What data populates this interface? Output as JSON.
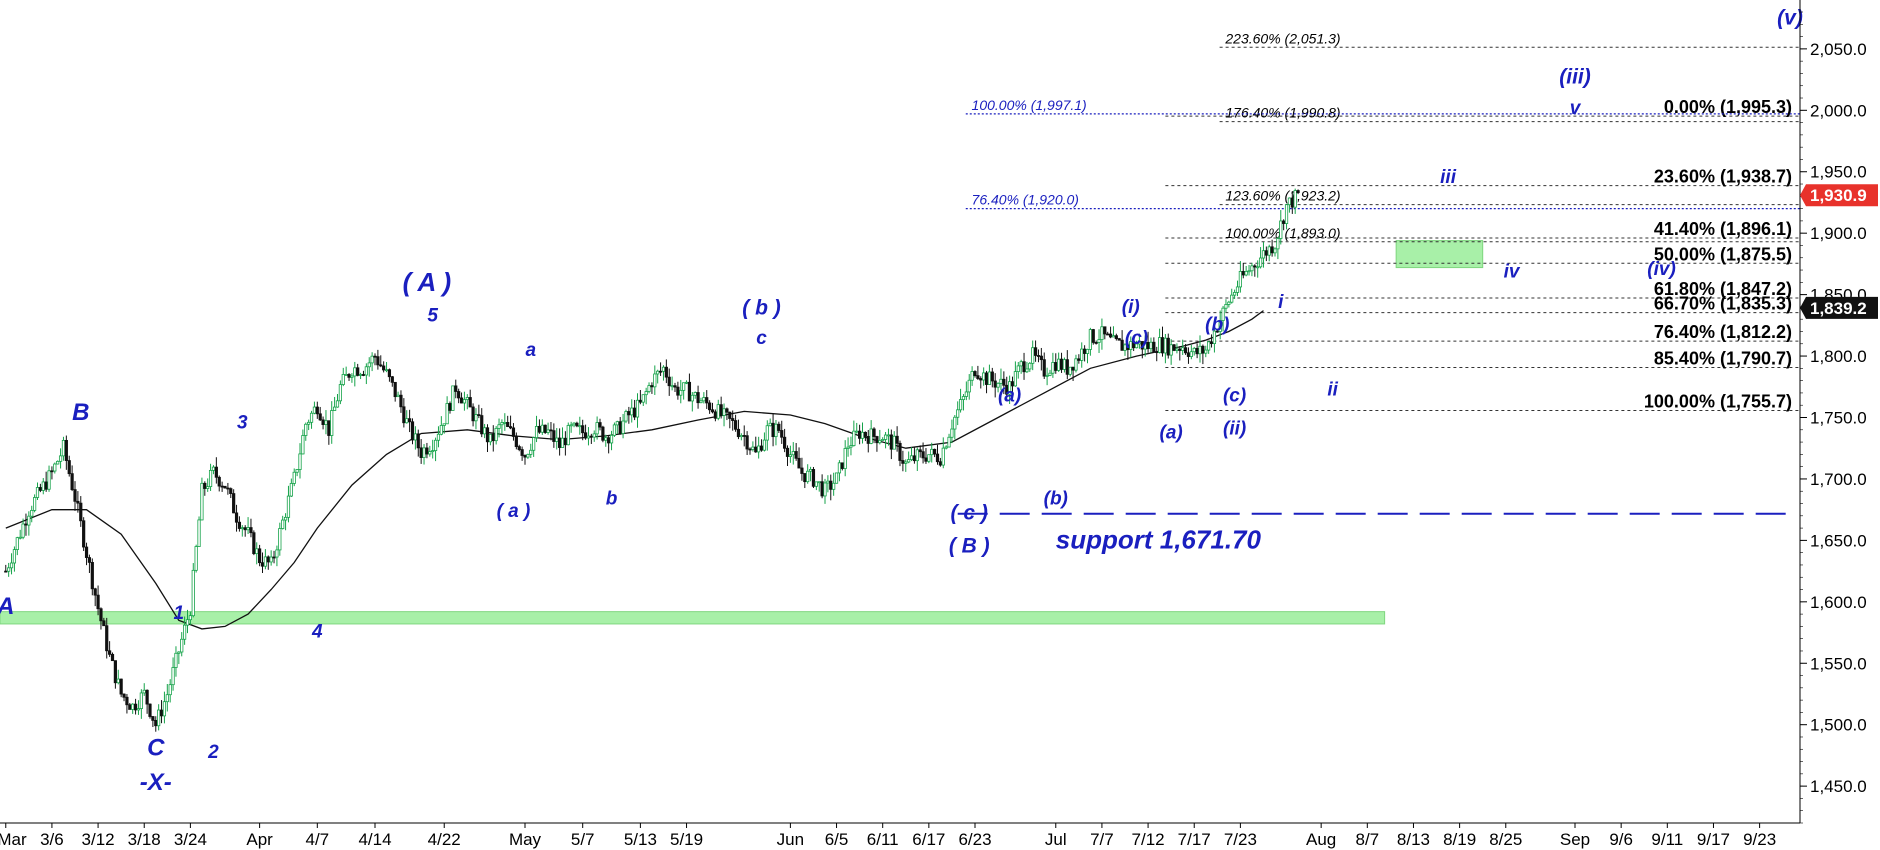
{
  "chart_data": {
    "type": "candlestick",
    "title": "",
    "ylim": [
      1420,
      2080
    ],
    "y_ticks": [
      2050,
      2000,
      1950,
      1900,
      1850,
      1800,
      1750,
      1700,
      1650,
      1600,
      1550,
      1500,
      1450
    ],
    "y_tick_labels": [
      "2,050.0",
      "2,000.0",
      "1,950.0",
      "1,900.0",
      "1,850.0",
      "1,800.0",
      "1,750.0",
      "1,700.0",
      "1,650.0",
      "1,600.0",
      "1,550.0",
      "1,500.0",
      "1,450.0"
    ],
    "x_labels": [
      {
        "idx": 0,
        "label": "Mar"
      },
      {
        "idx": 4,
        "label": "3/6"
      },
      {
        "idx": 8,
        "label": "3/12"
      },
      {
        "idx": 12,
        "label": "3/18"
      },
      {
        "idx": 16,
        "label": "3/24"
      },
      {
        "idx": 22,
        "label": "Apr"
      },
      {
        "idx": 27,
        "label": "4/7"
      },
      {
        "idx": 32,
        "label": "4/14"
      },
      {
        "idx": 38,
        "label": "4/22"
      },
      {
        "idx": 45,
        "label": "May"
      },
      {
        "idx": 50,
        "label": "5/7"
      },
      {
        "idx": 55,
        "label": "5/13"
      },
      {
        "idx": 59,
        "label": "5/19"
      },
      {
        "idx": 68,
        "label": "Jun"
      },
      {
        "idx": 72,
        "label": "6/5"
      },
      {
        "idx": 76,
        "label": "6/11"
      },
      {
        "idx": 80,
        "label": "6/17"
      },
      {
        "idx": 84,
        "label": "6/23"
      },
      {
        "idx": 91,
        "label": "Jul"
      },
      {
        "idx": 95,
        "label": "7/7"
      },
      {
        "idx": 99,
        "label": "7/12"
      },
      {
        "idx": 103,
        "label": "7/17"
      },
      {
        "idx": 107,
        "label": "7/23"
      },
      {
        "idx": 114,
        "label": "Aug"
      },
      {
        "idx": 118,
        "label": "8/7"
      },
      {
        "idx": 122,
        "label": "8/13"
      },
      {
        "idx": 126,
        "label": "8/19"
      },
      {
        "idx": 130,
        "label": "8/25"
      },
      {
        "idx": 136,
        "label": "Sep"
      },
      {
        "idx": 140,
        "label": "9/6"
      },
      {
        "idx": 144,
        "label": "9/11"
      },
      {
        "idx": 148,
        "label": "9/17"
      },
      {
        "idx": 152,
        "label": "9/23"
      }
    ],
    "x_domain": [
      -0.5,
      155.5
    ],
    "price_path": [
      [
        0,
        1625
      ],
      [
        2,
        1675
      ],
      [
        4,
        1705
      ],
      [
        5,
        1725
      ],
      [
        6,
        1685
      ],
      [
        7,
        1640
      ],
      [
        8,
        1595
      ],
      [
        9,
        1555
      ],
      [
        10,
        1525
      ],
      [
        11,
        1515
      ],
      [
        12,
        1525
      ],
      [
        13,
        1500
      ],
      [
        14,
        1525
      ],
      [
        15,
        1560
      ],
      [
        16,
        1595
      ],
      [
        17,
        1690
      ],
      [
        18,
        1705
      ],
      [
        19,
        1695
      ],
      [
        20,
        1670
      ],
      [
        21,
        1655
      ],
      [
        22,
        1635
      ],
      [
        23,
        1630
      ],
      [
        24,
        1665
      ],
      [
        25,
        1700
      ],
      [
        26,
        1745
      ],
      [
        27,
        1760
      ],
      [
        28,
        1740
      ],
      [
        29,
        1775
      ],
      [
        30,
        1790
      ],
      [
        31,
        1790
      ],
      [
        32,
        1800
      ],
      [
        33,
        1785
      ],
      [
        34,
        1765
      ],
      [
        35,
        1740
      ],
      [
        36,
        1722
      ],
      [
        37,
        1730
      ],
      [
        38,
        1750
      ],
      [
        39,
        1775
      ],
      [
        40,
        1760
      ],
      [
        41,
        1745
      ],
      [
        42,
        1730
      ],
      [
        43,
        1745
      ],
      [
        44,
        1735
      ],
      [
        45,
        1720
      ],
      [
        46,
        1738
      ],
      [
        47,
        1738
      ],
      [
        48,
        1727
      ],
      [
        49,
        1740
      ],
      [
        50,
        1738
      ],
      [
        51,
        1742
      ],
      [
        52,
        1735
      ],
      [
        53,
        1740
      ],
      [
        54,
        1752
      ],
      [
        55,
        1760
      ],
      [
        56,
        1780
      ],
      [
        57,
        1790
      ],
      [
        58,
        1773
      ],
      [
        59,
        1772
      ],
      [
        60,
        1765
      ],
      [
        61,
        1760
      ],
      [
        62,
        1752
      ],
      [
        63,
        1745
      ],
      [
        64,
        1735
      ],
      [
        65,
        1720
      ],
      [
        66,
        1740
      ],
      [
        67,
        1740
      ],
      [
        68,
        1720
      ],
      [
        69,
        1705
      ],
      [
        70,
        1700
      ],
      [
        71,
        1690
      ],
      [
        72,
        1700
      ],
      [
        73,
        1728
      ],
      [
        74,
        1738
      ],
      [
        75,
        1735
      ],
      [
        76,
        1735
      ],
      [
        77,
        1728
      ],
      [
        78,
        1712
      ],
      [
        79,
        1718
      ],
      [
        80,
        1720
      ],
      [
        81,
        1718
      ],
      [
        82,
        1745
      ],
      [
        83,
        1765
      ],
      [
        84,
        1790
      ],
      [
        85,
        1782
      ],
      [
        86,
        1778
      ],
      [
        87,
        1775
      ],
      [
        88,
        1792
      ],
      [
        89,
        1800
      ],
      [
        90,
        1788
      ],
      [
        91,
        1795
      ],
      [
        92,
        1790
      ],
      [
        93,
        1800
      ],
      [
        94,
        1815
      ],
      [
        95,
        1817
      ],
      [
        96,
        1810
      ],
      [
        97,
        1808
      ],
      [
        98,
        1810
      ],
      [
        99,
        1808
      ],
      [
        100,
        1810
      ],
      [
        101,
        1807
      ],
      [
        102,
        1808
      ],
      [
        103,
        1802
      ],
      [
        104,
        1805
      ],
      [
        105,
        1825
      ],
      [
        106,
        1845
      ],
      [
        107,
        1862
      ],
      [
        108,
        1873
      ],
      [
        109,
        1883
      ],
      [
        110,
        1892
      ],
      [
        111,
        1922
      ],
      [
        112,
        1931
      ]
    ],
    "moving_average": [
      [
        0,
        1660
      ],
      [
        4,
        1675
      ],
      [
        7,
        1675
      ],
      [
        10,
        1655
      ],
      [
        13,
        1615
      ],
      [
        15,
        1585
      ],
      [
        17,
        1578
      ],
      [
        19,
        1580
      ],
      [
        21,
        1590
      ],
      [
        23,
        1610
      ],
      [
        25,
        1632
      ],
      [
        27,
        1660
      ],
      [
        30,
        1695
      ],
      [
        33,
        1720
      ],
      [
        36,
        1737
      ],
      [
        40,
        1740
      ],
      [
        44,
        1735
      ],
      [
        48,
        1732
      ],
      [
        52,
        1735
      ],
      [
        56,
        1740
      ],
      [
        60,
        1748
      ],
      [
        64,
        1755
      ],
      [
        68,
        1752
      ],
      [
        71,
        1745
      ],
      [
        74,
        1735
      ],
      [
        78,
        1725
      ],
      [
        82,
        1730
      ],
      [
        86,
        1750
      ],
      [
        90,
        1770
      ],
      [
        94,
        1790
      ],
      [
        98,
        1800
      ],
      [
        102,
        1808
      ],
      [
        104,
        1813
      ],
      [
        106,
        1820
      ],
      [
        108,
        1830
      ],
      [
        109,
        1837
      ]
    ],
    "fib_levels_right": [
      {
        "value": 1995.3,
        "label": "0.00% (1,995.3)"
      },
      {
        "value": 1938.7,
        "label": "23.60% (1,938.7)"
      },
      {
        "value": 1896.1,
        "label": "41.40% (1,896.1)"
      },
      {
        "value": 1875.5,
        "label": "50.00% (1,875.5)"
      },
      {
        "value": 1847.2,
        "label": "61.80% (1,847.2)"
      },
      {
        "value": 1835.3,
        "label": "66.70% (1,835.3)"
      },
      {
        "value": 1812.2,
        "label": "76.40% (1,812.2)"
      },
      {
        "value": 1790.7,
        "label": "85.40% (1,790.7)"
      },
      {
        "value": 1755.7,
        "label": "100.00% (1,755.7)"
      }
    ],
    "fib_levels_black_ext": [
      {
        "value": 2051.3,
        "label": "223.60% (2,051.3)"
      },
      {
        "value": 1990.8,
        "label": "176.40% (1,990.8)"
      },
      {
        "value": 1923.2,
        "label": "123.60% (1,923.2)"
      },
      {
        "value": 1893.0,
        "label": "100.00% (1,893.0)"
      }
    ],
    "fib_levels_blue_ext": [
      {
        "value": 1997.1,
        "label": "100.00% (1,997.1)"
      },
      {
        "value": 1920.0,
        "label": "76.40% (1,920.0)"
      }
    ],
    "support": {
      "value": 1671.7,
      "label": "support 1,671.70"
    },
    "green_zones": [
      {
        "x0": -0.5,
        "x1": 119.5,
        "y0": 1582,
        "y1": 1592
      },
      {
        "x0": 120.5,
        "x1": 128,
        "y0": 1872,
        "y1": 1894
      }
    ],
    "price_tags": [
      {
        "value": 1930.9,
        "label": "1,930.9",
        "color": "#e8322b"
      },
      {
        "value": 1839.2,
        "label": "1,839.2",
        "color": "#111111"
      }
    ],
    "wave_labels": [
      {
        "text": "A",
        "x": 0,
        "y": 1590,
        "size": 24,
        "italic": false
      },
      {
        "text": "B",
        "x": 6.5,
        "y": 1748,
        "size": 24,
        "italic": false
      },
      {
        "text": "C",
        "x": 13,
        "y": 1475,
        "size": 24,
        "italic": false
      },
      {
        "text": "-X-",
        "x": 13,
        "y": 1447,
        "size": 24,
        "italic": false
      },
      {
        "text": "1",
        "x": 15,
        "y": 1586,
        "size": 19,
        "italic": true
      },
      {
        "text": "2",
        "x": 18,
        "y": 1473,
        "size": 19,
        "italic": true
      },
      {
        "text": "3",
        "x": 20.5,
        "y": 1741,
        "size": 19,
        "italic": true
      },
      {
        "text": "4",
        "x": 27,
        "y": 1571,
        "size": 19,
        "italic": true
      },
      {
        "text": "( A )",
        "x": 36.5,
        "y": 1853,
        "size": 26,
        "italic": false
      },
      {
        "text": "5",
        "x": 37,
        "y": 1828,
        "size": 19,
        "italic": true
      },
      {
        "text": "a",
        "x": 45.5,
        "y": 1800,
        "size": 19,
        "italic": true
      },
      {
        "text": "( a )",
        "x": 44,
        "y": 1669,
        "size": 19,
        "italic": true
      },
      {
        "text": "b",
        "x": 52.5,
        "y": 1679,
        "size": 19,
        "italic": true
      },
      {
        "text": "( b )",
        "x": 65.5,
        "y": 1834,
        "size": 21,
        "italic": true
      },
      {
        "text": "c",
        "x": 65.5,
        "y": 1810,
        "size": 19,
        "italic": true
      },
      {
        "text": "( c )",
        "x": 83.5,
        "y": 1667,
        "size": 21,
        "italic": true
      },
      {
        "text": "( B )",
        "x": 83.5,
        "y": 1640,
        "size": 21,
        "italic": false
      },
      {
        "text": "(a)",
        "x": 87,
        "y": 1763,
        "size": 19,
        "italic": true
      },
      {
        "text": "(b)",
        "x": 91,
        "y": 1679,
        "size": 19,
        "italic": true
      },
      {
        "text": "(i)",
        "x": 97.5,
        "y": 1835,
        "size": 19,
        "italic": true
      },
      {
        "text": "(c)",
        "x": 98,
        "y": 1810,
        "size": 19,
        "italic": true
      },
      {
        "text": "(a)",
        "x": 101,
        "y": 1733,
        "size": 19,
        "italic": true
      },
      {
        "text": "(b)",
        "x": 105,
        "y": 1821,
        "size": 19,
        "italic": true
      },
      {
        "text": "(c)",
        "x": 106.5,
        "y": 1763,
        "size": 19,
        "italic": true
      },
      {
        "text": "(ii)",
        "x": 106.5,
        "y": 1736,
        "size": 19,
        "italic": true
      },
      {
        "text": "i",
        "x": 110.5,
        "y": 1839,
        "size": 19,
        "italic": true
      },
      {
        "text": "ii",
        "x": 115,
        "y": 1768,
        "size": 19,
        "italic": true
      },
      {
        "text": "iii",
        "x": 125,
        "y": 1941,
        "size": 19,
        "italic": true
      },
      {
        "text": "iv",
        "x": 130.5,
        "y": 1864,
        "size": 19,
        "italic": true
      },
      {
        "text": "(iv)",
        "x": 143.5,
        "y": 1866,
        "size": 19,
        "italic": true
      },
      {
        "text": "v",
        "x": 136,
        "y": 1997,
        "size": 19,
        "italic": true
      },
      {
        "text": "(iii)",
        "x": 136,
        "y": 2022,
        "size": 21,
        "italic": true
      },
      {
        "text": "(v)",
        "x": 157,
        "y": 2070,
        "size": 21,
        "italic": true
      }
    ]
  }
}
